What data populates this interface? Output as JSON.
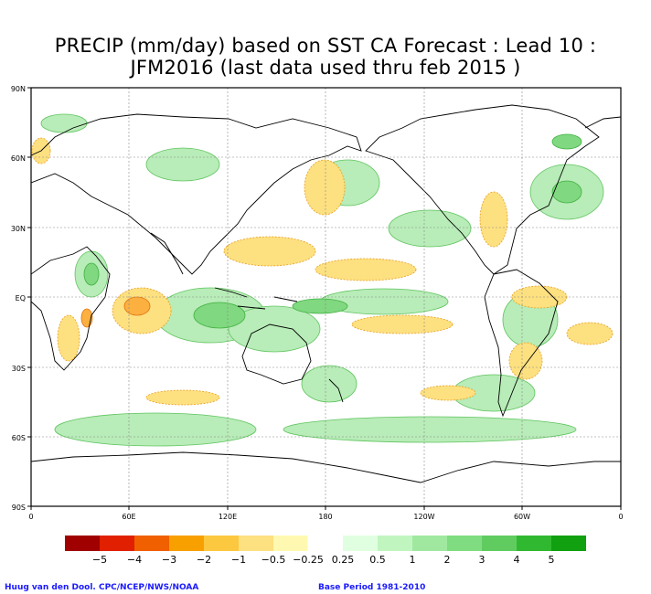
{
  "title": {
    "line1": "PRECIP (mm/day) based on SST CA Forecast : Lead 10 :",
    "line2": "JFM2016 (last data used thru feb 2015 )"
  },
  "axes": {
    "lat_labels": [
      "90N",
      "60N",
      "30N",
      "EQ",
      "30S",
      "60S",
      "90S"
    ],
    "lon_labels": [
      "0",
      "60E",
      "120E",
      "180",
      "120W",
      "60W",
      "0"
    ]
  },
  "colorbar": {
    "colors": [
      "#a00000",
      "#e02000",
      "#f06000",
      "#f8a000",
      "#fcc840",
      "#fde080",
      "#fff8b0",
      "#ffffff",
      "#e0ffe0",
      "#c0f5c0",
      "#a0e8a0",
      "#80dc80",
      "#60cc60",
      "#30b830",
      "#10a010"
    ],
    "labels": [
      "−5",
      "−4",
      "−3",
      "−2",
      "−1",
      "−0.5",
      "−0.25",
      "0.25",
      "0.5",
      "1",
      "2",
      "3",
      "4",
      "5"
    ]
  },
  "footer": {
    "credit": "Huug van den Dool. CPC/NCEP/NWS/NOAA",
    "base_period": "Base Period 1981-2010"
  }
}
